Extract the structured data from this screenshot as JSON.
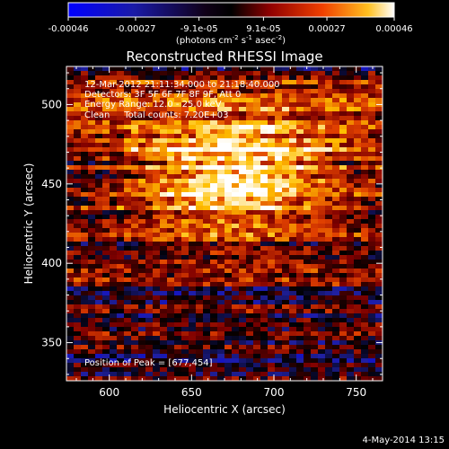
{
  "chart_data": {
    "type": "heatmap",
    "title": "Reconstructed RHESSI Image",
    "xlabel": "Heliocentric X (arcsec)",
    "ylabel": "Heliocentric Y (arcsec)",
    "xlim": [
      574,
      766
    ],
    "ylim": [
      326,
      524
    ],
    "x_ticks": [
      600,
      650,
      700,
      750
    ],
    "y_ticks": [
      350,
      400,
      450,
      500
    ],
    "colorbar": {
      "ticks": [
        "-0.00046",
        "-0.00027",
        "-9.1e-05",
        "9.1e-05",
        "0.00027",
        "0.00046"
      ],
      "tick_values": [
        -0.00046,
        -0.00027,
        -9.1e-05,
        9.1e-05,
        0.00027,
        0.00046
      ],
      "range": [
        -0.00046,
        0.00046
      ],
      "units_prefix": "(photons cm",
      "units_sup1": "-2",
      "units_mid": " s",
      "units_sup2": "-1",
      "units_mid2": " asec",
      "units_sup3": "-2",
      "units_suffix": ")",
      "colormap": [
        "#0000ff",
        "#2020a0",
        "#000000",
        "#800000",
        "#e04000",
        "#ffc000",
        "#ffffff"
      ]
    },
    "annotations": [
      "12-Mar-2012 21:11:34.000 to 21:18:40.000",
      "Detectors: 3F 5F 6F 7F 8F 9F, Att 0",
      "Energy Range: 12.0 - 25.0 keV",
      "Clean     Total counts: 7.20E+03"
    ],
    "peak_label": "Position of Peak = [677,454]",
    "peak_position": [
      677,
      454
    ]
  },
  "footer": {
    "date": "4-May-2014 13:15"
  }
}
